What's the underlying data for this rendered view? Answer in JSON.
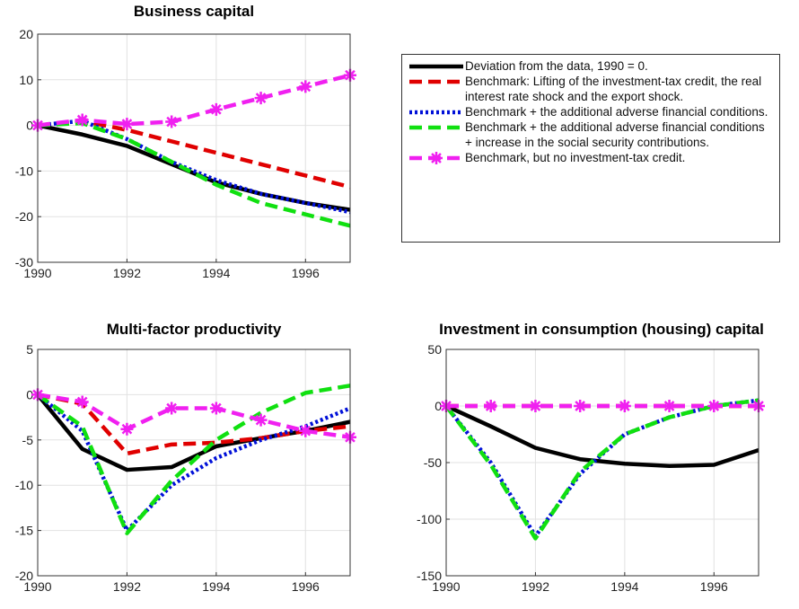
{
  "chart_data": [
    {
      "type": "line",
      "title": "Business capital",
      "x": [
        1990,
        1991,
        1992,
        1993,
        1994,
        1995,
        1996,
        1997
      ],
      "xlim": [
        1990,
        1997
      ],
      "xticks": [
        1990,
        1992,
        1994,
        1996
      ],
      "ylim": [
        -30,
        20
      ],
      "yticks": [
        -30,
        -20,
        -10,
        0,
        10,
        20
      ],
      "grid": true,
      "series": [
        {
          "name": "Deviation from the data, 1990 = 0.",
          "color": "#000000",
          "dash": "solid",
          "values": [
            0,
            -2,
            -4.5,
            -8.5,
            -12.5,
            -15,
            -17,
            -18.5
          ]
        },
        {
          "name": "Benchmark: Lifting of the investment-tax credit, the real interest rate shock and the export shock.",
          "color": "#e00000",
          "dash": "dashed",
          "values": [
            0,
            1,
            -1,
            -3.5,
            -6,
            -8.5,
            -11,
            -13.5
          ]
        },
        {
          "name": "Benchmark + the additional adverse financial conditions.",
          "color": "#0010d8",
          "dash": "dotted",
          "values": [
            0,
            1,
            -3,
            -8,
            -12,
            -15,
            -17,
            -19
          ]
        },
        {
          "name": "Benchmark + the additional adverse financial conditions + increase in the social security contributions.",
          "color": "#10e010",
          "dash": "dashed",
          "values": [
            0,
            0.5,
            -3,
            -8,
            -13,
            -17,
            -19.5,
            -22
          ]
        },
        {
          "name": "Benchmark, but no investment-tax credit.",
          "color": "#f020f0",
          "dash": "dashed",
          "marker": "asterisk",
          "values": [
            0,
            1.2,
            0.3,
            0.8,
            3.5,
            6,
            8.5,
            11
          ]
        }
      ]
    },
    {
      "type": "line",
      "title": "Multi-factor productivity",
      "x": [
        1990,
        1991,
        1992,
        1993,
        1994,
        1995,
        1996,
        1997
      ],
      "xlim": [
        1990,
        1997
      ],
      "xticks": [
        1990,
        1992,
        1994,
        1996
      ],
      "ylim": [
        -20,
        5
      ],
      "yticks": [
        -20,
        -15,
        -10,
        -5,
        0,
        5
      ],
      "grid": true,
      "series": [
        {
          "color": "#000000",
          "dash": "solid",
          "values": [
            0,
            -6,
            -8.3,
            -8,
            -5.7,
            -4.8,
            -4,
            -3
          ]
        },
        {
          "color": "#e00000",
          "dash": "dashed",
          "values": [
            0,
            -1,
            -6.5,
            -5.5,
            -5.3,
            -4.8,
            -4,
            -3.5
          ]
        },
        {
          "color": "#0010d8",
          "dash": "dotted",
          "values": [
            0,
            -4,
            -15,
            -10,
            -7,
            -5,
            -3.5,
            -1.5
          ]
        },
        {
          "color": "#10e010",
          "dash": "dashed",
          "values": [
            0,
            -3.5,
            -15.3,
            -9.5,
            -5,
            -2,
            0.2,
            1
          ]
        },
        {
          "color": "#f020f0",
          "dash": "dashed",
          "marker": "asterisk",
          "values": [
            0,
            -0.8,
            -3.8,
            -1.5,
            -1.5,
            -2.8,
            -4,
            -4.7
          ]
        }
      ]
    },
    {
      "type": "line",
      "title": "Investment in consumption (housing) capital",
      "x": [
        1990,
        1991,
        1992,
        1993,
        1994,
        1995,
        1996,
        1997
      ],
      "xlim": [
        1990,
        1997
      ],
      "xticks": [
        1990,
        1992,
        1994,
        1996
      ],
      "ylim": [
        -150,
        50
      ],
      "yticks": [
        -150,
        -100,
        -50,
        0,
        50
      ],
      "grid": true,
      "series": [
        {
          "color": "#000000",
          "dash": "solid",
          "values": [
            0,
            -18,
            -37,
            -47,
            -51,
            -53,
            -52,
            -39
          ]
        },
        {
          "color": "#e00000",
          "dash": "dashed",
          "values": [
            0,
            0,
            0,
            0,
            0,
            0,
            0,
            0
          ]
        },
        {
          "color": "#0010d8",
          "dash": "dotted",
          "values": [
            0,
            -50,
            -115,
            -60,
            -25,
            -10,
            0,
            5
          ]
        },
        {
          "color": "#10e010",
          "dash": "dashed",
          "values": [
            0,
            -52,
            -117,
            -58,
            -25,
            -10,
            0,
            5
          ]
        },
        {
          "color": "#f020f0",
          "dash": "dashed",
          "marker": "asterisk",
          "values": [
            0,
            0,
            0,
            0,
            0,
            0,
            0,
            0
          ]
        }
      ]
    }
  ]
}
